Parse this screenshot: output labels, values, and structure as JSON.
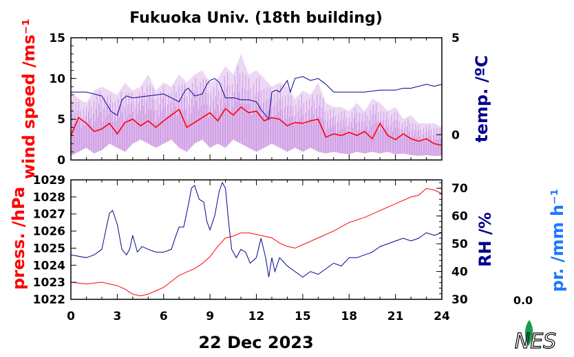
{
  "title": "Fukuoka Univ. (18th building)",
  "date_label": "22 Dec 2023",
  "colors": {
    "red": "#ff0000",
    "navy": "#00008b",
    "violet": "#c88be0",
    "blue": "#1e78ff",
    "logo_green": "#1a9a52"
  },
  "logo_text": "NES",
  "chart_data": [
    {
      "type": "line",
      "panel": "top",
      "xlim": [
        0,
        24
      ],
      "x_ticks": [
        "0",
        "3",
        "6",
        "9",
        "12",
        "15",
        "18",
        "21",
        "24"
      ],
      "ylabel_left": "wind speed /ms⁻¹",
      "ylim_left": [
        0,
        15
      ],
      "y_ticks_left": [
        "0",
        "5",
        "10",
        "15"
      ],
      "ylabel_right": "temp. /ºC",
      "ylim_right": [
        -1.3,
        5
      ],
      "y_ticks_right": [
        "0",
        "5"
      ],
      "series": [
        {
          "axis": "left",
          "style": "gust-band",
          "color": "#c88be0",
          "x": [
            0,
            0.5,
            1,
            1.5,
            2,
            2.5,
            3,
            3.5,
            4,
            4.5,
            5,
            5.5,
            6,
            6.5,
            7,
            7.5,
            8,
            8.5,
            9,
            9.5,
            10,
            10.5,
            11,
            11.5,
            12,
            12.5,
            13,
            13.5,
            14,
            14.5,
            15,
            15.5,
            16,
            16.5,
            17,
            17.5,
            18,
            18.5,
            19,
            19.5,
            20,
            20.5,
            21,
            21.5,
            22,
            22.5,
            23,
            23.5,
            24
          ],
          "low": [
            0.5,
            1.0,
            1.5,
            0.8,
            1.2,
            2.0,
            1.5,
            1.0,
            2.0,
            2.5,
            2.0,
            1.5,
            2.0,
            2.5,
            1.5,
            1.0,
            2.0,
            2.5,
            1.5,
            2.0,
            1.5,
            2.5,
            2.0,
            1.5,
            1.0,
            1.5,
            2.0,
            1.5,
            1.0,
            1.5,
            1.0,
            1.5,
            1.0,
            0.8,
            1.0,
            0.8,
            0.7,
            1.0,
            0.8,
            1.0,
            0.8,
            1.0,
            0.7,
            0.8,
            0.6,
            0.5,
            0.6,
            0.5,
            0.5
          ],
          "high": [
            8.5,
            7.5,
            7.0,
            8.5,
            9.0,
            8.5,
            8.0,
            9.5,
            8.5,
            9.0,
            10.5,
            8.5,
            9.5,
            9.0,
            10.5,
            9.5,
            10.5,
            11.0,
            9.5,
            10.0,
            11.5,
            10.5,
            13.0,
            10.5,
            11.0,
            10.0,
            9.0,
            9.5,
            9.0,
            7.5,
            8.5,
            8.0,
            9.5,
            7.0,
            6.5,
            6.5,
            6.0,
            7.0,
            6.0,
            7.5,
            7.0,
            6.0,
            6.5,
            5.0,
            5.5,
            4.5,
            4.5,
            4.5,
            4.0
          ]
        },
        {
          "name": "wind speed",
          "axis": "left",
          "color": "#ff0000",
          "x": [
            0,
            0.5,
            1,
            1.5,
            2,
            2.5,
            3,
            3.5,
            4,
            4.5,
            5,
            5.5,
            6,
            6.5,
            7,
            7.5,
            8,
            8.5,
            9,
            9.5,
            10,
            10.5,
            11,
            11.5,
            12,
            12.5,
            13,
            13.5,
            14,
            14.5,
            15,
            15.5,
            16,
            16.5,
            17,
            17.5,
            18,
            18.5,
            19,
            19.5,
            20,
            20.5,
            21,
            21.5,
            22,
            22.5,
            23,
            23.5,
            24
          ],
          "values": [
            3.0,
            5.2,
            4.5,
            3.5,
            3.8,
            4.5,
            3.2,
            4.6,
            5.0,
            4.2,
            4.8,
            4.0,
            4.8,
            5.5,
            6.2,
            4.0,
            4.6,
            5.2,
            5.8,
            4.8,
            6.3,
            5.5,
            6.5,
            5.8,
            6.0,
            4.8,
            5.2,
            5.0,
            4.2,
            4.6,
            4.5,
            4.8,
            5.0,
            2.8,
            3.2,
            3.0,
            3.4,
            3.0,
            3.5,
            2.6,
            4.5,
            3.0,
            2.5,
            3.2,
            2.6,
            2.3,
            2.6,
            2.0,
            1.8
          ]
        },
        {
          "name": "temperature",
          "axis": "right",
          "color": "#00008b",
          "x": [
            0,
            1,
            1.5,
            2,
            2.3,
            2.6,
            3,
            3.3,
            3.6,
            4,
            5,
            6,
            6.5,
            7,
            7.4,
            7.6,
            8,
            8.5,
            8.8,
            9,
            9.3,
            9.6,
            10,
            10.6,
            11,
            11.5,
            12,
            12.3,
            12.6,
            12.8,
            13,
            13.3,
            13.5,
            14,
            14.2,
            14.5,
            15,
            15.5,
            16,
            16.5,
            17,
            18,
            19,
            20,
            21,
            21.5,
            22,
            22.5,
            23,
            23.5,
            24
          ],
          "values": [
            2.2,
            2.2,
            2.1,
            2.0,
            1.6,
            1.2,
            1.0,
            1.8,
            2.0,
            1.9,
            2.0,
            2.1,
            1.9,
            1.7,
            2.3,
            2.4,
            2.0,
            2.1,
            2.6,
            2.8,
            2.9,
            2.7,
            1.9,
            1.9,
            1.8,
            1.8,
            1.7,
            1.3,
            1.0,
            0.8,
            2.2,
            2.3,
            2.2,
            2.8,
            2.2,
            2.9,
            3.0,
            2.8,
            2.9,
            2.6,
            2.2,
            2.2,
            2.2,
            2.3,
            2.3,
            2.4,
            2.4,
            2.5,
            2.6,
            2.5,
            2.6
          ]
        }
      ]
    },
    {
      "type": "line",
      "panel": "bottom",
      "xlim": [
        0,
        24
      ],
      "x_ticks": [
        "0",
        "3",
        "6",
        "9",
        "12",
        "15",
        "18",
        "21",
        "24"
      ],
      "ylabel_left": "press. /hPa",
      "ylim_left": [
        1022,
        1029
      ],
      "y_ticks_left": [
        "1022",
        "1023",
        "1024",
        "1025",
        "1026",
        "1027",
        "1028",
        "1029"
      ],
      "ylabel_right": "RH /%",
      "ylim_right": [
        30,
        73
      ],
      "y_ticks_right": [
        "30",
        "40",
        "50",
        "60",
        "70"
      ],
      "ylabel_far_right": "pr. /mm h⁻¹",
      "precip_total": "0.0",
      "series": [
        {
          "name": "pressure",
          "axis": "left",
          "color": "#ff0000",
          "x": [
            0,
            1,
            2,
            3,
            3.5,
            4,
            4.5,
            5,
            6,
            7,
            7.5,
            8,
            8.5,
            9,
            9.5,
            10,
            10.5,
            11,
            11.5,
            12,
            12.5,
            13,
            13.5,
            14,
            14.5,
            15,
            15.5,
            16,
            17,
            18,
            19,
            20,
            21,
            22,
            22.5,
            23,
            23.5,
            24
          ],
          "values": [
            1023.0,
            1022.9,
            1023.0,
            1022.8,
            1022.6,
            1022.3,
            1022.2,
            1022.3,
            1022.7,
            1023.4,
            1023.6,
            1023.8,
            1024.1,
            1024.5,
            1025.1,
            1025.6,
            1025.7,
            1025.9,
            1025.9,
            1025.8,
            1025.7,
            1025.6,
            1025.3,
            1025.1,
            1025.0,
            1025.2,
            1025.4,
            1025.6,
            1026.0,
            1026.5,
            1026.8,
            1027.2,
            1027.6,
            1028.0,
            1028.1,
            1028.5,
            1028.4,
            1028.2
          ]
        },
        {
          "name": "relative humidity",
          "axis": "right",
          "color": "#00008b",
          "x": [
            0,
            1,
            1.5,
            2,
            2.3,
            2.5,
            2.7,
            3,
            3.3,
            3.6,
            3.8,
            4,
            4.3,
            4.6,
            5,
            5.5,
            6,
            6.5,
            6.8,
            7,
            7.3,
            7.6,
            7.8,
            8,
            8.3,
            8.6,
            8.8,
            9,
            9.3,
            9.6,
            9.8,
            10,
            10.2,
            10.4,
            10.7,
            11,
            11.3,
            11.6,
            12,
            12.3,
            12.6,
            12.8,
            13,
            13.2,
            13.5,
            14,
            14.5,
            15,
            15.5,
            16,
            16.5,
            17,
            17.5,
            18,
            18.5,
            19,
            19.5,
            20,
            20.5,
            21,
            21.5,
            22,
            22.5,
            23,
            23.5,
            24
          ],
          "values": [
            46,
            45,
            46,
            48,
            56,
            61,
            62,
            57,
            48,
            46,
            48,
            53,
            47,
            49,
            48,
            47,
            47,
            48,
            53,
            56,
            56,
            64,
            70,
            71,
            66,
            65,
            58,
            55,
            60,
            69,
            72,
            70,
            58,
            48,
            45,
            48,
            47,
            43,
            45,
            52,
            45,
            38,
            45,
            40,
            45,
            42,
            40,
            38,
            40,
            39,
            41,
            43,
            42,
            45,
            45,
            46,
            47,
            49,
            50,
            51,
            52,
            51,
            52,
            54,
            53,
            54
          ]
        }
      ]
    }
  ]
}
